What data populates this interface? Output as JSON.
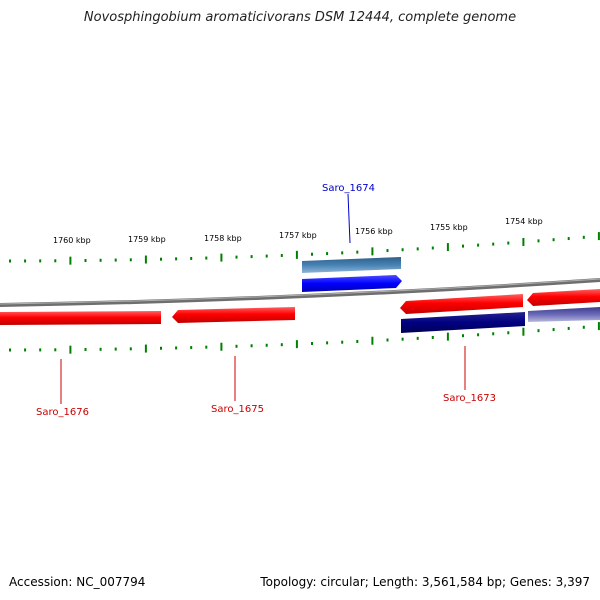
{
  "title": "Novosphingobium aromaticivorans DSM 12444, complete genome",
  "accession": "Accession: NC_007794",
  "summary": "Topology: circular; Length: 3,561,584 bp; Genes: 3,397",
  "colors": {
    "forward_gene": "#ff0000",
    "reverse_gene": "#ff0000",
    "cds_forward": "#0000ff",
    "cds_reverse": "#000080",
    "other_feature": "#4682b4",
    "backbone": "#808080",
    "ticks": "#008000",
    "label_blue": "#0000cc",
    "label_red": "#cc0000"
  },
  "ruler": {
    "labels": [
      "1760 kbp",
      "1759 kbp",
      "1758 kbp",
      "1757 kbp",
      "1756 kbp",
      "1755 kbp",
      "1754 kbp"
    ]
  },
  "genes": [
    {
      "name": "Saro_1674",
      "strand": "+"
    },
    {
      "name": "Saro_1676",
      "strand": "-"
    },
    {
      "name": "Saro_1675",
      "strand": "-"
    },
    {
      "name": "Saro_1673",
      "strand": "-"
    }
  ]
}
